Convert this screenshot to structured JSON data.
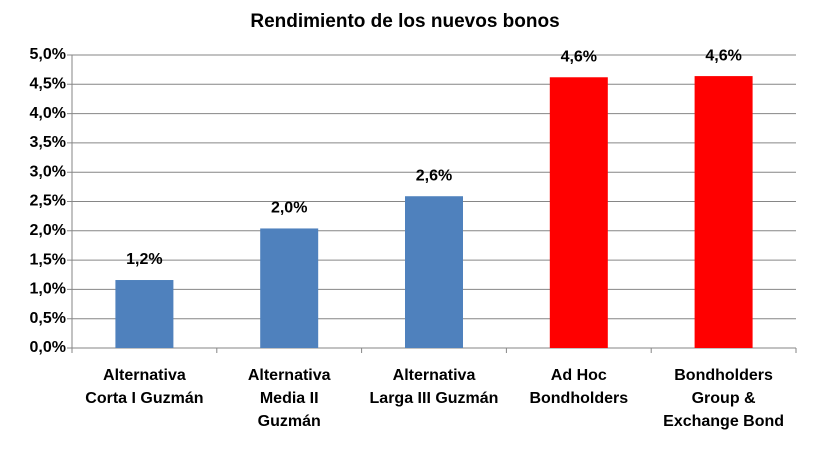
{
  "chart_data": {
    "type": "bar",
    "title": "Rendimiento de los nuevos bonos",
    "categories": [
      [
        "Alternativa",
        "Corta I Guzmán"
      ],
      [
        "Alternativa",
        "Media II",
        "Guzmán"
      ],
      [
        "Alternativa",
        "Larga III Guzmán"
      ],
      [
        "Ad Hoc",
        "Bondholders"
      ],
      [
        "Bondholders",
        "Group &",
        "Exchange Bond"
      ]
    ],
    "values": [
      1.16,
      2.04,
      2.59,
      4.62,
      4.64
    ],
    "value_labels": [
      "1,2%",
      "2,0%",
      "2,6%",
      "4,6%",
      "4,6%"
    ],
    "colors": [
      "#4f81bd",
      "#4f81bd",
      "#4f81bd",
      "#ff0000",
      "#ff0000"
    ],
    "ylim": [
      0,
      5
    ],
    "yticks": [
      {
        "value": 0,
        "label": "0,0%"
      },
      {
        "value": 0.5,
        "label": "0,5%"
      },
      {
        "value": 1,
        "label": "1,0%"
      },
      {
        "value": 1.5,
        "label": "1,5%"
      },
      {
        "value": 2,
        "label": "2,0%"
      },
      {
        "value": 2.5,
        "label": "2,5%"
      },
      {
        "value": 3,
        "label": "3,0%"
      },
      {
        "value": 3.5,
        "label": "3,5%"
      },
      {
        "value": 4,
        "label": "4,0%"
      },
      {
        "value": 4.5,
        "label": "4,5%"
      },
      {
        "value": 5,
        "label": "5,0%"
      }
    ],
    "grid": true
  }
}
